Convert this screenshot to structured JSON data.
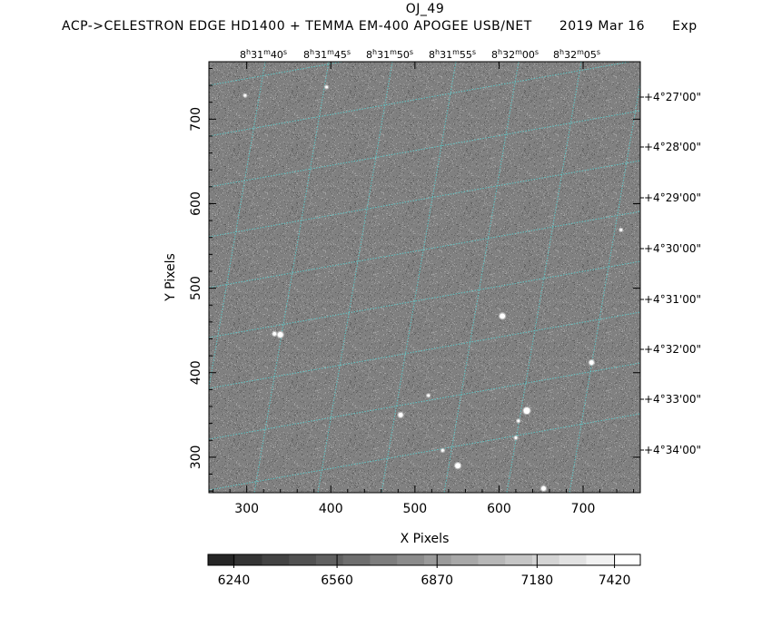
{
  "header": {
    "object_name": "OJ_49",
    "telescope_line": "ACP->CELESTRON EDGE HD1400 + TEMMA EM-400 APOGEE USB/NET",
    "date": "2019 Mar 16",
    "exposure_prefix": "Exp"
  },
  "chart_data": {
    "type": "heatmap",
    "xlabel": "X Pixels",
    "ylabel": "Y Pixels",
    "xlim": [
      255,
      768
    ],
    "ylim": [
      258,
      768
    ],
    "x_ticks": [
      300,
      400,
      500,
      600,
      700
    ],
    "y_ticks": [
      300,
      400,
      500,
      600,
      700
    ],
    "ra_ticks": [
      {
        "h": "8",
        "m": "31",
        "s": "40"
      },
      {
        "h": "8",
        "m": "31",
        "s": "45"
      },
      {
        "h": "8",
        "m": "31",
        "s": "50"
      },
      {
        "h": "8",
        "m": "31",
        "s": "55"
      },
      {
        "h": "8",
        "m": "32",
        "s": "00"
      },
      {
        "h": "8",
        "m": "32",
        "s": "05"
      }
    ],
    "dec_ticks": [
      "+4°27'00\"",
      "+4°28'00\"",
      "+4°29'00\"",
      "+4°30'00\"",
      "+4°31'00\"",
      "+4°32'00\"",
      "+4°33'00\"",
      "+4°34'00\""
    ],
    "grid": true,
    "grid_color": "#5fc8c8",
    "colorbar": {
      "min": 6160,
      "max": 7500,
      "tick_values": [
        6240,
        6560,
        6870,
        7180,
        7420
      ],
      "tick_labels": [
        "6240",
        "6560",
        "6870",
        "7180",
        "7420"
      ],
      "steps": 16
    },
    "stars": [
      {
        "x": 298,
        "y": 728,
        "r": 1.5
      },
      {
        "x": 333,
        "y": 446,
        "r": 2
      },
      {
        "x": 340,
        "y": 445,
        "r": 3
      },
      {
        "x": 395,
        "y": 738,
        "r": 1.5
      },
      {
        "x": 483,
        "y": 350,
        "r": 2.5
      },
      {
        "x": 516,
        "y": 373,
        "r": 1.5
      },
      {
        "x": 533,
        "y": 308,
        "r": 1.5
      },
      {
        "x": 551,
        "y": 290,
        "r": 3
      },
      {
        "x": 604,
        "y": 467,
        "r": 3
      },
      {
        "x": 620,
        "y": 323,
        "r": 1.5
      },
      {
        "x": 623,
        "y": 343,
        "r": 1.5
      },
      {
        "x": 633,
        "y": 355,
        "r": 3.5
      },
      {
        "x": 653,
        "y": 263,
        "r": 2.5
      },
      {
        "x": 710,
        "y": 412,
        "r": 2.5
      },
      {
        "x": 745,
        "y": 569,
        "r": 1.5
      }
    ]
  }
}
